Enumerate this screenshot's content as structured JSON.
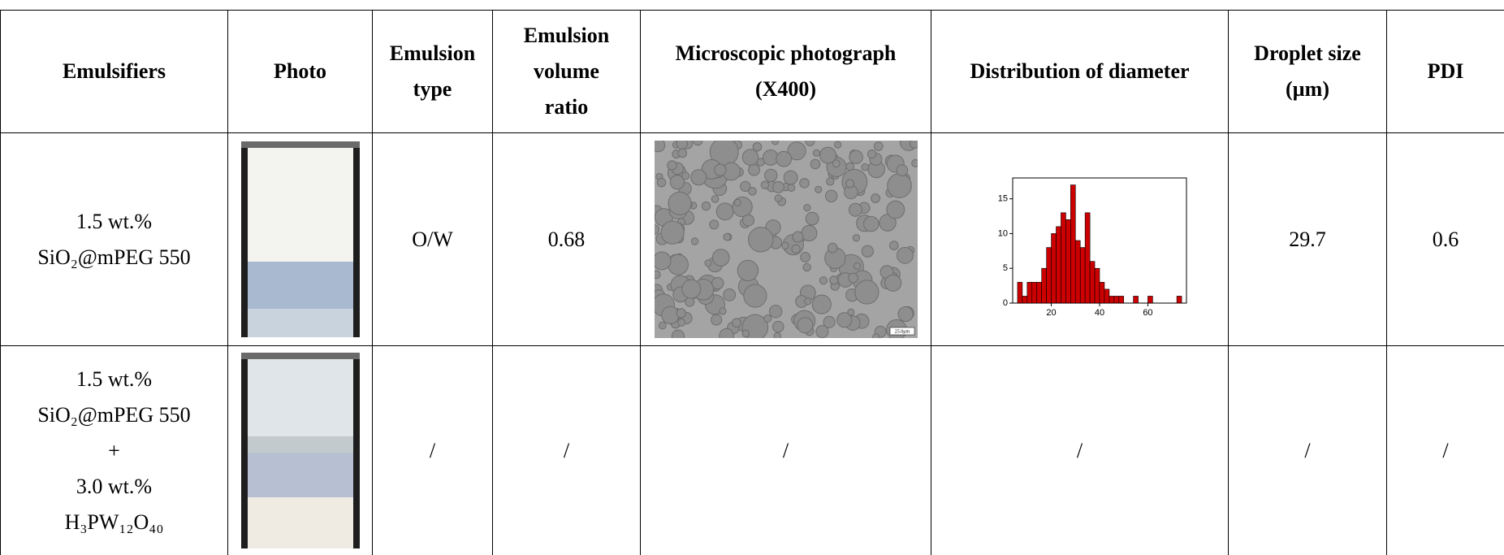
{
  "table": {
    "header": [
      [
        "Emulsifiers"
      ],
      [
        "Photo"
      ],
      [
        "Emulsion",
        "type"
      ],
      [
        "Emulsion",
        "volume",
        "ratio"
      ],
      [
        "Microscopic photograph",
        "(X400)"
      ],
      [
        "Distribution of diameter"
      ],
      [
        "Droplet size",
        "(µm)"
      ],
      [
        "PDI"
      ]
    ],
    "rows": [
      {
        "emulsifier": [
          "1.5 wt.%",
          "SiO₂@mPEG 550"
        ],
        "emulsion_type": "O/W",
        "volume_ratio": 0.68,
        "microscope": {
          "scale_label": "25.0μm"
        },
        "distribution": {
          "type": "histogram",
          "bins": [
            6,
            8,
            10,
            12,
            14,
            16,
            18,
            20,
            22,
            24,
            26,
            28,
            30,
            32,
            34,
            36,
            38,
            40,
            42,
            44,
            46,
            48,
            50,
            52,
            54,
            56,
            58,
            60,
            62,
            64,
            66,
            68,
            70,
            72,
            74
          ],
          "values": [
            3,
            1,
            3,
            3,
            3,
            5,
            8,
            10,
            11,
            13,
            12,
            17,
            9,
            8,
            13,
            6,
            5,
            3,
            2,
            1,
            1,
            1,
            0,
            0,
            1,
            0,
            0,
            1,
            0,
            0,
            0,
            0,
            0,
            1
          ],
          "color": "#cc0000",
          "xlim": [
            4,
            76
          ],
          "ylim": [
            0,
            18
          ],
          "xticks": [
            20,
            40,
            60
          ],
          "yticks": [
            0,
            5,
            10,
            15
          ]
        },
        "droplet_size": 29.7,
        "pdi": 0.6
      },
      {
        "emulsifier": [
          "1.5 wt.%",
          "SiO₂@mPEG 550",
          "+",
          "3.0 wt.%",
          "H₃PW₁₂O₄₀"
        ],
        "emulsion_type": "/",
        "volume_ratio": "/",
        "microscope": "/",
        "distribution": "/",
        "droplet_size": "/",
        "pdi": "/"
      }
    ]
  }
}
